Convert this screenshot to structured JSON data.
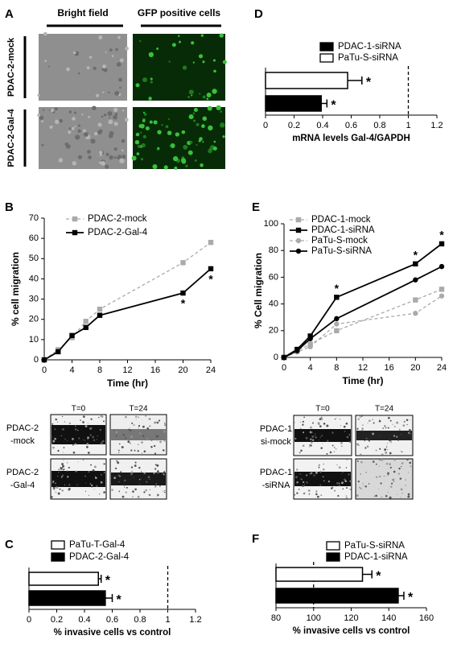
{
  "panel_A": {
    "panel": "A",
    "columns": [
      "Bright field",
      "GFP positive cells"
    ],
    "rows": [
      "PDAC-2-mock",
      "PDAC-2-Gal-4"
    ]
  },
  "images_B": {
    "columns": [
      "T=0",
      "T=24"
    ],
    "rows": [
      [
        "PDAC-2",
        "-mock"
      ],
      [
        "PDAC-2",
        "-Gal-4"
      ]
    ]
  },
  "images_E": {
    "columns": [
      "T=0",
      "T=24"
    ],
    "rows": [
      [
        "PDAC-1",
        "si-mock"
      ],
      [
        "PDAC-1",
        "-siRNA"
      ]
    ]
  },
  "chart_data": [
    {
      "type": "hbar",
      "panel": "D",
      "x_label": "mRNA levels Gal-4/GAPDH",
      "xlim": [
        0,
        1.2
      ],
      "xticks": [
        0,
        0.2,
        0.4,
        0.6,
        0.8,
        1,
        1.2
      ],
      "reference_line": 1,
      "series": [
        {
          "name": "PDAC-1-siRNA",
          "color": "#000000",
          "values": [
            0.39
          ],
          "errors": [
            0.04
          ],
          "significance": [
            "*"
          ]
        },
        {
          "name": "PaTu-S-siRNA",
          "color": "#ffffff",
          "values": [
            0.575
          ],
          "errors": [
            0.1
          ],
          "significance": [
            "*"
          ]
        }
      ]
    },
    {
      "type": "line",
      "panel": "B",
      "x_label": "Time (hr)",
      "y_label": "% cell migration",
      "x": [
        0,
        2,
        4,
        6,
        8,
        20,
        24
      ],
      "xlim": [
        0,
        24
      ],
      "xticks": [
        0,
        4,
        8,
        12,
        16,
        20,
        24
      ],
      "ylim": [
        0,
        70
      ],
      "yticks": [
        0,
        10,
        20,
        30,
        40,
        50,
        60,
        70
      ],
      "series": [
        {
          "name": "PDAC-2-mock",
          "color": "#aaaaaa",
          "dashed": true,
          "marker": "square",
          "values": [
            0,
            5,
            11,
            19,
            25,
            48,
            58
          ],
          "significance": [
            null,
            null,
            null,
            null,
            null,
            null,
            null
          ]
        },
        {
          "name": "PDAC-2-Gal-4",
          "color": "#000000",
          "dashed": false,
          "marker": "square",
          "values": [
            0,
            4,
            12,
            16,
            22,
            33,
            45
          ],
          "significance": [
            null,
            null,
            null,
            null,
            null,
            "*",
            "*"
          ]
        }
      ]
    },
    {
      "type": "line",
      "panel": "E",
      "x_label": "Time (hr)",
      "y_label": "% Cell migration",
      "x": [
        0,
        2,
        4,
        8,
        20,
        24
      ],
      "xlim": [
        0,
        24
      ],
      "xticks": [
        0,
        4,
        8,
        12,
        16,
        20,
        24
      ],
      "ylim": [
        0,
        100
      ],
      "yticks": [
        0,
        20,
        40,
        60,
        80,
        100
      ],
      "series": [
        {
          "name": "PDAC-1-mock",
          "color": "#aaaaaa",
          "dashed": true,
          "marker": "square",
          "values": [
            0,
            5,
            10,
            20,
            43,
            51
          ],
          "significance": [
            null,
            null,
            null,
            null,
            null,
            null
          ]
        },
        {
          "name": "PDAC-1-siRNA",
          "color": "#000000",
          "dashed": false,
          "marker": "square",
          "values": [
            0,
            6,
            16,
            45,
            70,
            85
          ],
          "significance": [
            null,
            null,
            null,
            "*",
            "*",
            "*"
          ]
        },
        {
          "name": "PaTu-S-mock",
          "color": "#aaaaaa",
          "dashed": true,
          "marker": "circle",
          "values": [
            0,
            4,
            8,
            25,
            33,
            46
          ],
          "significance": [
            null,
            null,
            null,
            null,
            null,
            null
          ]
        },
        {
          "name": "PaTu-S-siRNA",
          "color": "#000000",
          "dashed": false,
          "marker": "circle",
          "values": [
            0,
            5,
            14,
            29,
            58,
            68
          ],
          "significance": [
            null,
            null,
            null,
            null,
            null,
            null
          ]
        }
      ]
    },
    {
      "type": "hbar",
      "panel": "C",
      "x_label": "% invasive cells vs control",
      "xlim": [
        0,
        1.2
      ],
      "xticks": [
        0,
        0.2,
        0.4,
        0.6,
        0.8,
        1,
        1.2
      ],
      "reference_line": 1,
      "series": [
        {
          "name": "PaTu-T-Gal-4",
          "color": "#ffffff",
          "values": [
            0.5
          ],
          "errors": [
            0.02
          ],
          "significance": [
            "*"
          ]
        },
        {
          "name": "PDAC-2-Gal-4",
          "color": "#000000",
          "values": [
            0.55
          ],
          "errors": [
            0.05
          ],
          "significance": [
            "*"
          ]
        }
      ]
    },
    {
      "type": "hbar",
      "panel": "F",
      "x_label": "% invasive cells vs control",
      "xlim": [
        80,
        160
      ],
      "xticks": [
        80,
        100,
        120,
        140,
        160
      ],
      "reference_line": 100,
      "series": [
        {
          "name": "PaTu-S-siRNA",
          "color": "#ffffff",
          "values": [
            126
          ],
          "errors": [
            5
          ],
          "significance": [
            "*"
          ]
        },
        {
          "name": "PDAC-1-siRNA",
          "color": "#000000",
          "values": [
            145
          ],
          "errors": [
            3
          ],
          "significance": [
            "*"
          ]
        }
      ]
    }
  ]
}
